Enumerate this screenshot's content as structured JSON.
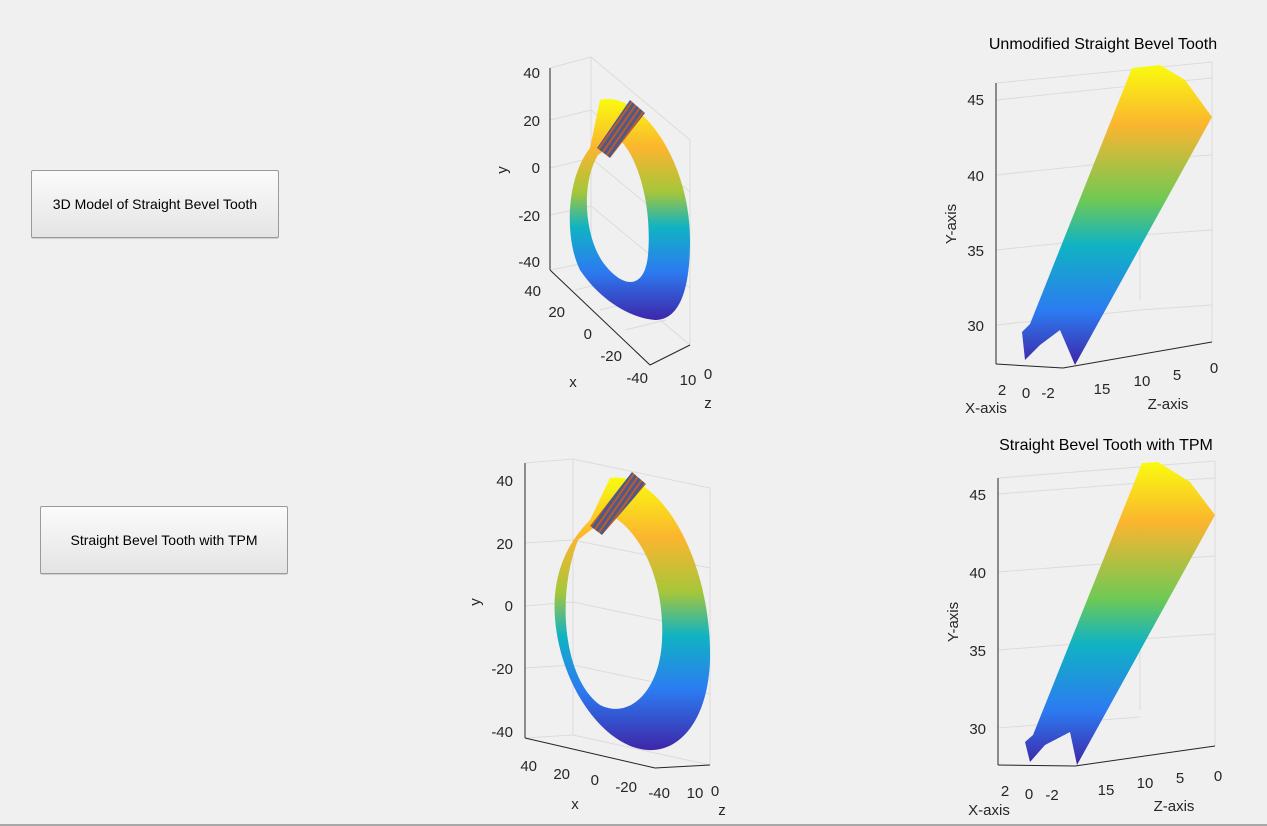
{
  "buttons": {
    "model_3d": "3D Model of Straight Bevel Tooth",
    "tpm": "Straight Bevel Tooth with TPM"
  },
  "plots": {
    "ring_top": {
      "yticks": [
        "40",
        "20",
        "0",
        "-20",
        "-40"
      ],
      "xticks": [
        "40",
        "20",
        "0",
        "-20",
        "-40"
      ],
      "zticks": [
        "10",
        "0"
      ],
      "xlabel": "x",
      "ylabel": "y",
      "zlabel": "z"
    },
    "ring_bottom": {
      "yticks": [
        "40",
        "20",
        "0",
        "-20",
        "-40"
      ],
      "xticks": [
        "40",
        "20",
        "0",
        "-20",
        "-40"
      ],
      "zticks": [
        "10",
        "0"
      ],
      "xlabel": "x",
      "ylabel": "y",
      "zlabel": "z"
    },
    "tooth_top": {
      "title": "Unmodified Straight Bevel Tooth",
      "yticks": [
        "45",
        "40",
        "35",
        "30"
      ],
      "xticks": [
        "2",
        "0",
        "-2"
      ],
      "zticks": [
        "15",
        "10",
        "5",
        "0"
      ],
      "xlabel": "X-axis",
      "ylabel": "Y-axis",
      "zlabel": "Z-axis"
    },
    "tooth_bottom": {
      "title": "Straight Bevel Tooth with TPM",
      "yticks": [
        "45",
        "40",
        "35",
        "30"
      ],
      "xticks": [
        "2",
        "0",
        "-2"
      ],
      "zticks": [
        "15",
        "10",
        "5",
        "0"
      ],
      "xlabel": "X-axis",
      "ylabel": "Y-axis",
      "zlabel": "Z-axis"
    }
  },
  "colors": {
    "parula_low": "#3e26a8",
    "parula_mid_low": "#2c7bf1",
    "parula_mid": "#10b3c3",
    "parula_mid_high": "#6fc954",
    "parula_high_mid": "#fbb52f",
    "parula_high": "#f9fb0e"
  }
}
